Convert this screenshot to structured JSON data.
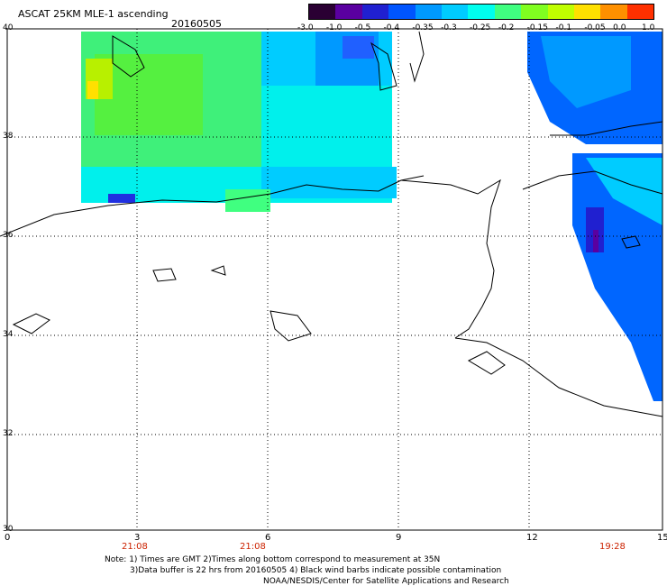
{
  "header": {
    "title": "ASCAT 25KM MLE-1 ascending",
    "date": "20160505"
  },
  "colorbar": {
    "labels": [
      "-3.0",
      "-1.0",
      "-0.5",
      "-0.4",
      "-0.35",
      "-0.3",
      "-0.25",
      "-0.2",
      "-0.15",
      "-0.1",
      "-0.05",
      "0.0",
      "1.0"
    ],
    "colors": [
      "#2a0033",
      "#5a00a0",
      "#2020d0",
      "#0055ff",
      "#0099ff",
      "#00ccff",
      "#00ffee",
      "#40ff80",
      "#80ff20",
      "#c0ff00",
      "#ffe000",
      "#ff9000",
      "#ff3000"
    ]
  },
  "axes": {
    "x_ticks": [
      "0",
      "3",
      "6",
      "9",
      "12",
      "15"
    ],
    "y_ticks": [
      "40",
      "38",
      "36",
      "34",
      "32",
      "30"
    ],
    "time_labels": [
      "21:08",
      "21:08",
      "19:28"
    ],
    "time_label_color": "#cc2200"
  },
  "notes": {
    "line1": "Note: 1) Times are GMT 2)Times along bottom correspond to measurement at 35N",
    "line2": "3)Data buffer is 22 hrs from 20160505 4) Black wind barbs indicate possible contamination",
    "line3": "NOAA/NESDIS/Center for Satellite Applications and Research"
  }
}
